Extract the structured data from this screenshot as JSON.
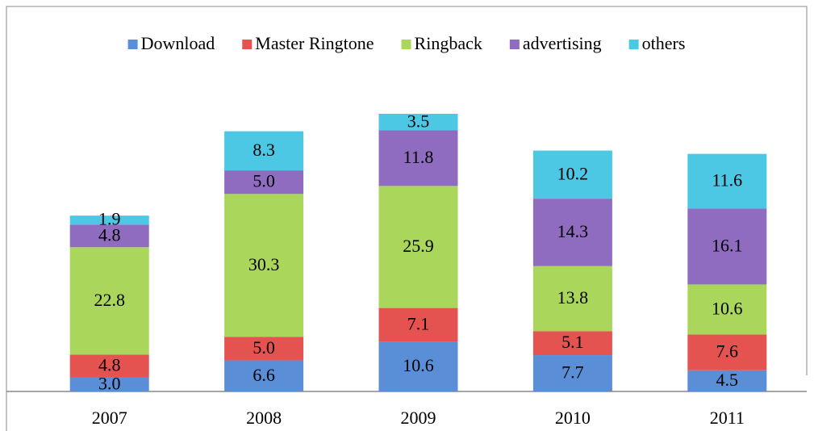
{
  "chart_data": {
    "type": "stacked_bar",
    "categories": [
      "2007",
      "2008",
      "2009",
      "2010",
      "2011"
    ],
    "series": [
      {
        "name": "Download",
        "color": "#5a8fd8",
        "values": [
          3.0,
          6.6,
          10.6,
          7.7,
          4.5
        ],
        "value_labels": [
          "3.0",
          "6.6",
          "10.6",
          "7.7",
          "4.5"
        ]
      },
      {
        "name": "Master Ringtone",
        "color": "#e4534f",
        "values": [
          4.8,
          5.0,
          7.1,
          5.1,
          7.6
        ],
        "value_labels": [
          "4.8",
          "5.0",
          "7.1",
          "5.1",
          "7.6"
        ]
      },
      {
        "name": "Ringback",
        "color": "#a9d65b",
        "values": [
          22.8,
          30.3,
          25.9,
          13.8,
          10.6
        ],
        "value_labels": [
          "22.8",
          "30.3",
          "25.9",
          "13.8",
          "10.6"
        ]
      },
      {
        "name": "advertising",
        "color": "#8f6cc0",
        "values": [
          4.8,
          5.0,
          11.8,
          14.3,
          16.1
        ],
        "value_labels": [
          "4.8",
          "5.0",
          "11.8",
          "14.3",
          "16.1"
        ]
      },
      {
        "name": "others",
        "color": "#4cc7e4",
        "values": [
          1.9,
          8.3,
          3.5,
          10.2,
          11.6
        ],
        "value_labels": [
          "1.9",
          "8.3",
          "3.5",
          "10.2",
          "11.6"
        ]
      }
    ],
    "legend": "top"
  }
}
